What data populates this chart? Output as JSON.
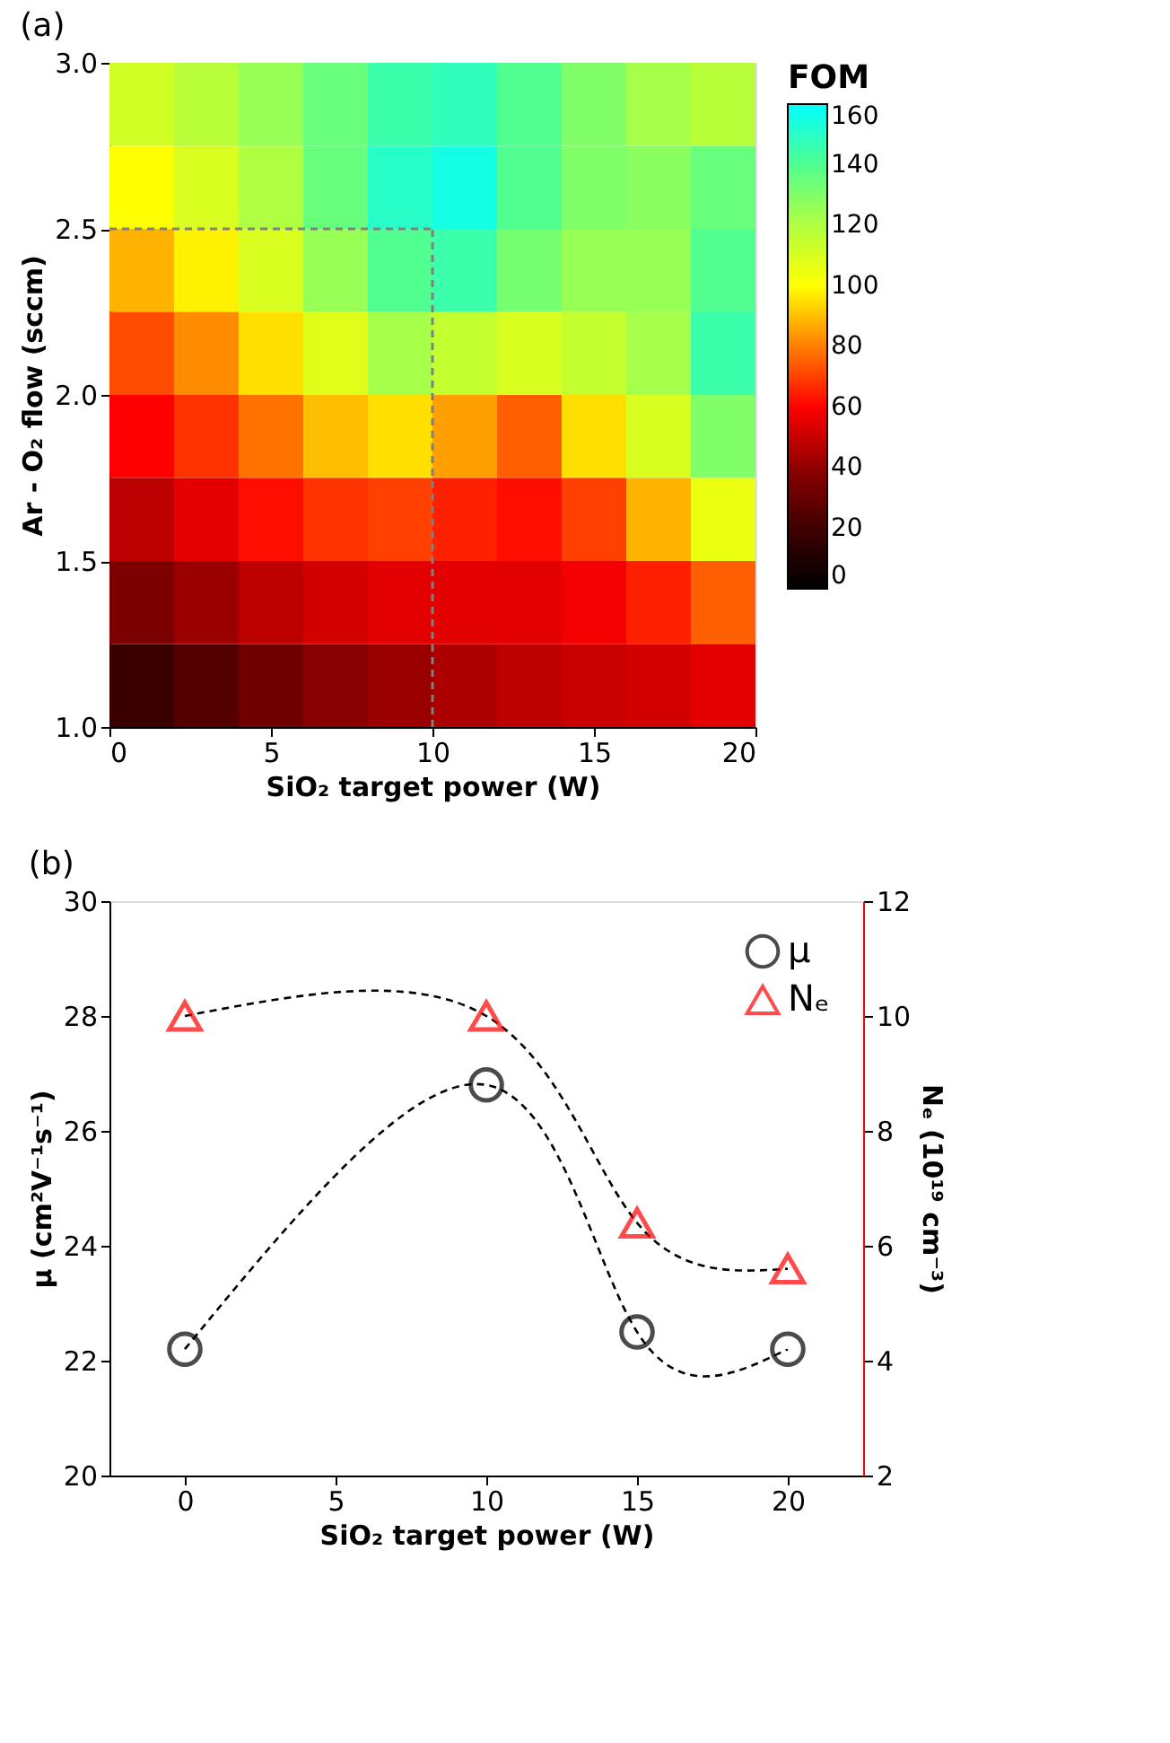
{
  "chart_data": [
    {
      "type": "heatmap",
      "title": "(a)",
      "xlabel": "SiO₂ target power (W)",
      "ylabel": "Ar - O₂ flow (sccm)",
      "clabel": "FOM",
      "x": [
        1,
        3,
        5,
        7,
        9,
        11,
        13,
        15,
        17,
        19
      ],
      "y": [
        2.875,
        2.625,
        2.375,
        2.125,
        1.875,
        1.625,
        1.375,
        1.125
      ],
      "cells": [
        [
          112,
          118,
          125,
          135,
          145,
          148,
          140,
          130,
          122,
          118
        ],
        [
          100,
          110,
          120,
          135,
          150,
          155,
          140,
          130,
          128,
          135
        ],
        [
          88,
          98,
          110,
          125,
          140,
          145,
          132,
          125,
          125,
          140
        ],
        [
          72,
          82,
          95,
          108,
          122,
          115,
          110,
          115,
          122,
          145
        ],
        [
          60,
          68,
          78,
          90,
          95,
          85,
          75,
          95,
          110,
          130
        ],
        [
          48,
          55,
          62,
          68,
          70,
          65,
          62,
          70,
          88,
          105
        ],
        [
          35,
          42,
          48,
          52,
          55,
          55,
          55,
          58,
          65,
          75
        ],
        [
          18,
          25,
          32,
          38,
          42,
          45,
          48,
          50,
          52,
          55
        ]
      ],
      "xlim": [
        0,
        20
      ],
      "xticks": [
        0,
        5,
        10,
        15,
        20
      ],
      "ylim": [
        1,
        3
      ],
      "yticks": [
        {
          "value": 1,
          "label": "1.0"
        },
        {
          "value": 1.5,
          "label": "1.5"
        },
        {
          "value": 2,
          "label": "2.0"
        },
        {
          "value": 2.5,
          "label": "2.5"
        },
        {
          "value": 3,
          "label": "3.0"
        }
      ],
      "clim": [
        0,
        160
      ],
      "cticks": [
        0,
        20,
        40,
        60,
        80,
        100,
        120,
        140,
        160
      ],
      "ref_lines": [
        {
          "axis": "x",
          "value": 10,
          "color": "#808080",
          "line_style": "dashed"
        },
        {
          "axis": "y",
          "value": 2.5,
          "color": "#808080",
          "line_style": "dashed"
        }
      ]
    },
    {
      "type": "scatter",
      "title": "(b)",
      "xlabel": "SiO₂ target power (W)",
      "ylabel": "μ (cm²V⁻¹s⁻¹)",
      "y2label": "Nₑ (10¹⁹ cm⁻³)",
      "x": [
        0,
        10,
        15,
        20
      ],
      "series": [
        {
          "type": "line",
          "color": "#000000",
          "values": [
            22.2,
            26.8,
            22.5,
            22.2
          ],
          "line_style": "dashed",
          "marker": "none"
        },
        {
          "type": "line",
          "color": "#000000",
          "values": [
            10,
            10,
            6.4,
            5.6
          ],
          "axis": "y2",
          "line_style": "dashed",
          "marker": "none"
        },
        {
          "name": "μ",
          "type": "scatter",
          "color": "#000000",
          "values": [
            22.2,
            26.8,
            22.5,
            22.2
          ],
          "marker": "circle"
        },
        {
          "name": "Nₑ",
          "type": "scatter",
          "color": "#ff0000",
          "values": [
            10,
            10,
            6.4,
            5.6
          ],
          "axis": "y2",
          "marker": "triangle"
        }
      ],
      "xlim": [
        -2.5,
        22.5
      ],
      "xticks": [
        0,
        5,
        10,
        15,
        20
      ],
      "ylim": [
        20,
        30
      ],
      "yticks": [
        20,
        22,
        24,
        26,
        28,
        30
      ],
      "y2lim": [
        2,
        12
      ],
      "y2ticks": [
        2,
        4,
        6,
        8,
        10,
        12
      ],
      "legend": "top right",
      "grid": false
    }
  ]
}
